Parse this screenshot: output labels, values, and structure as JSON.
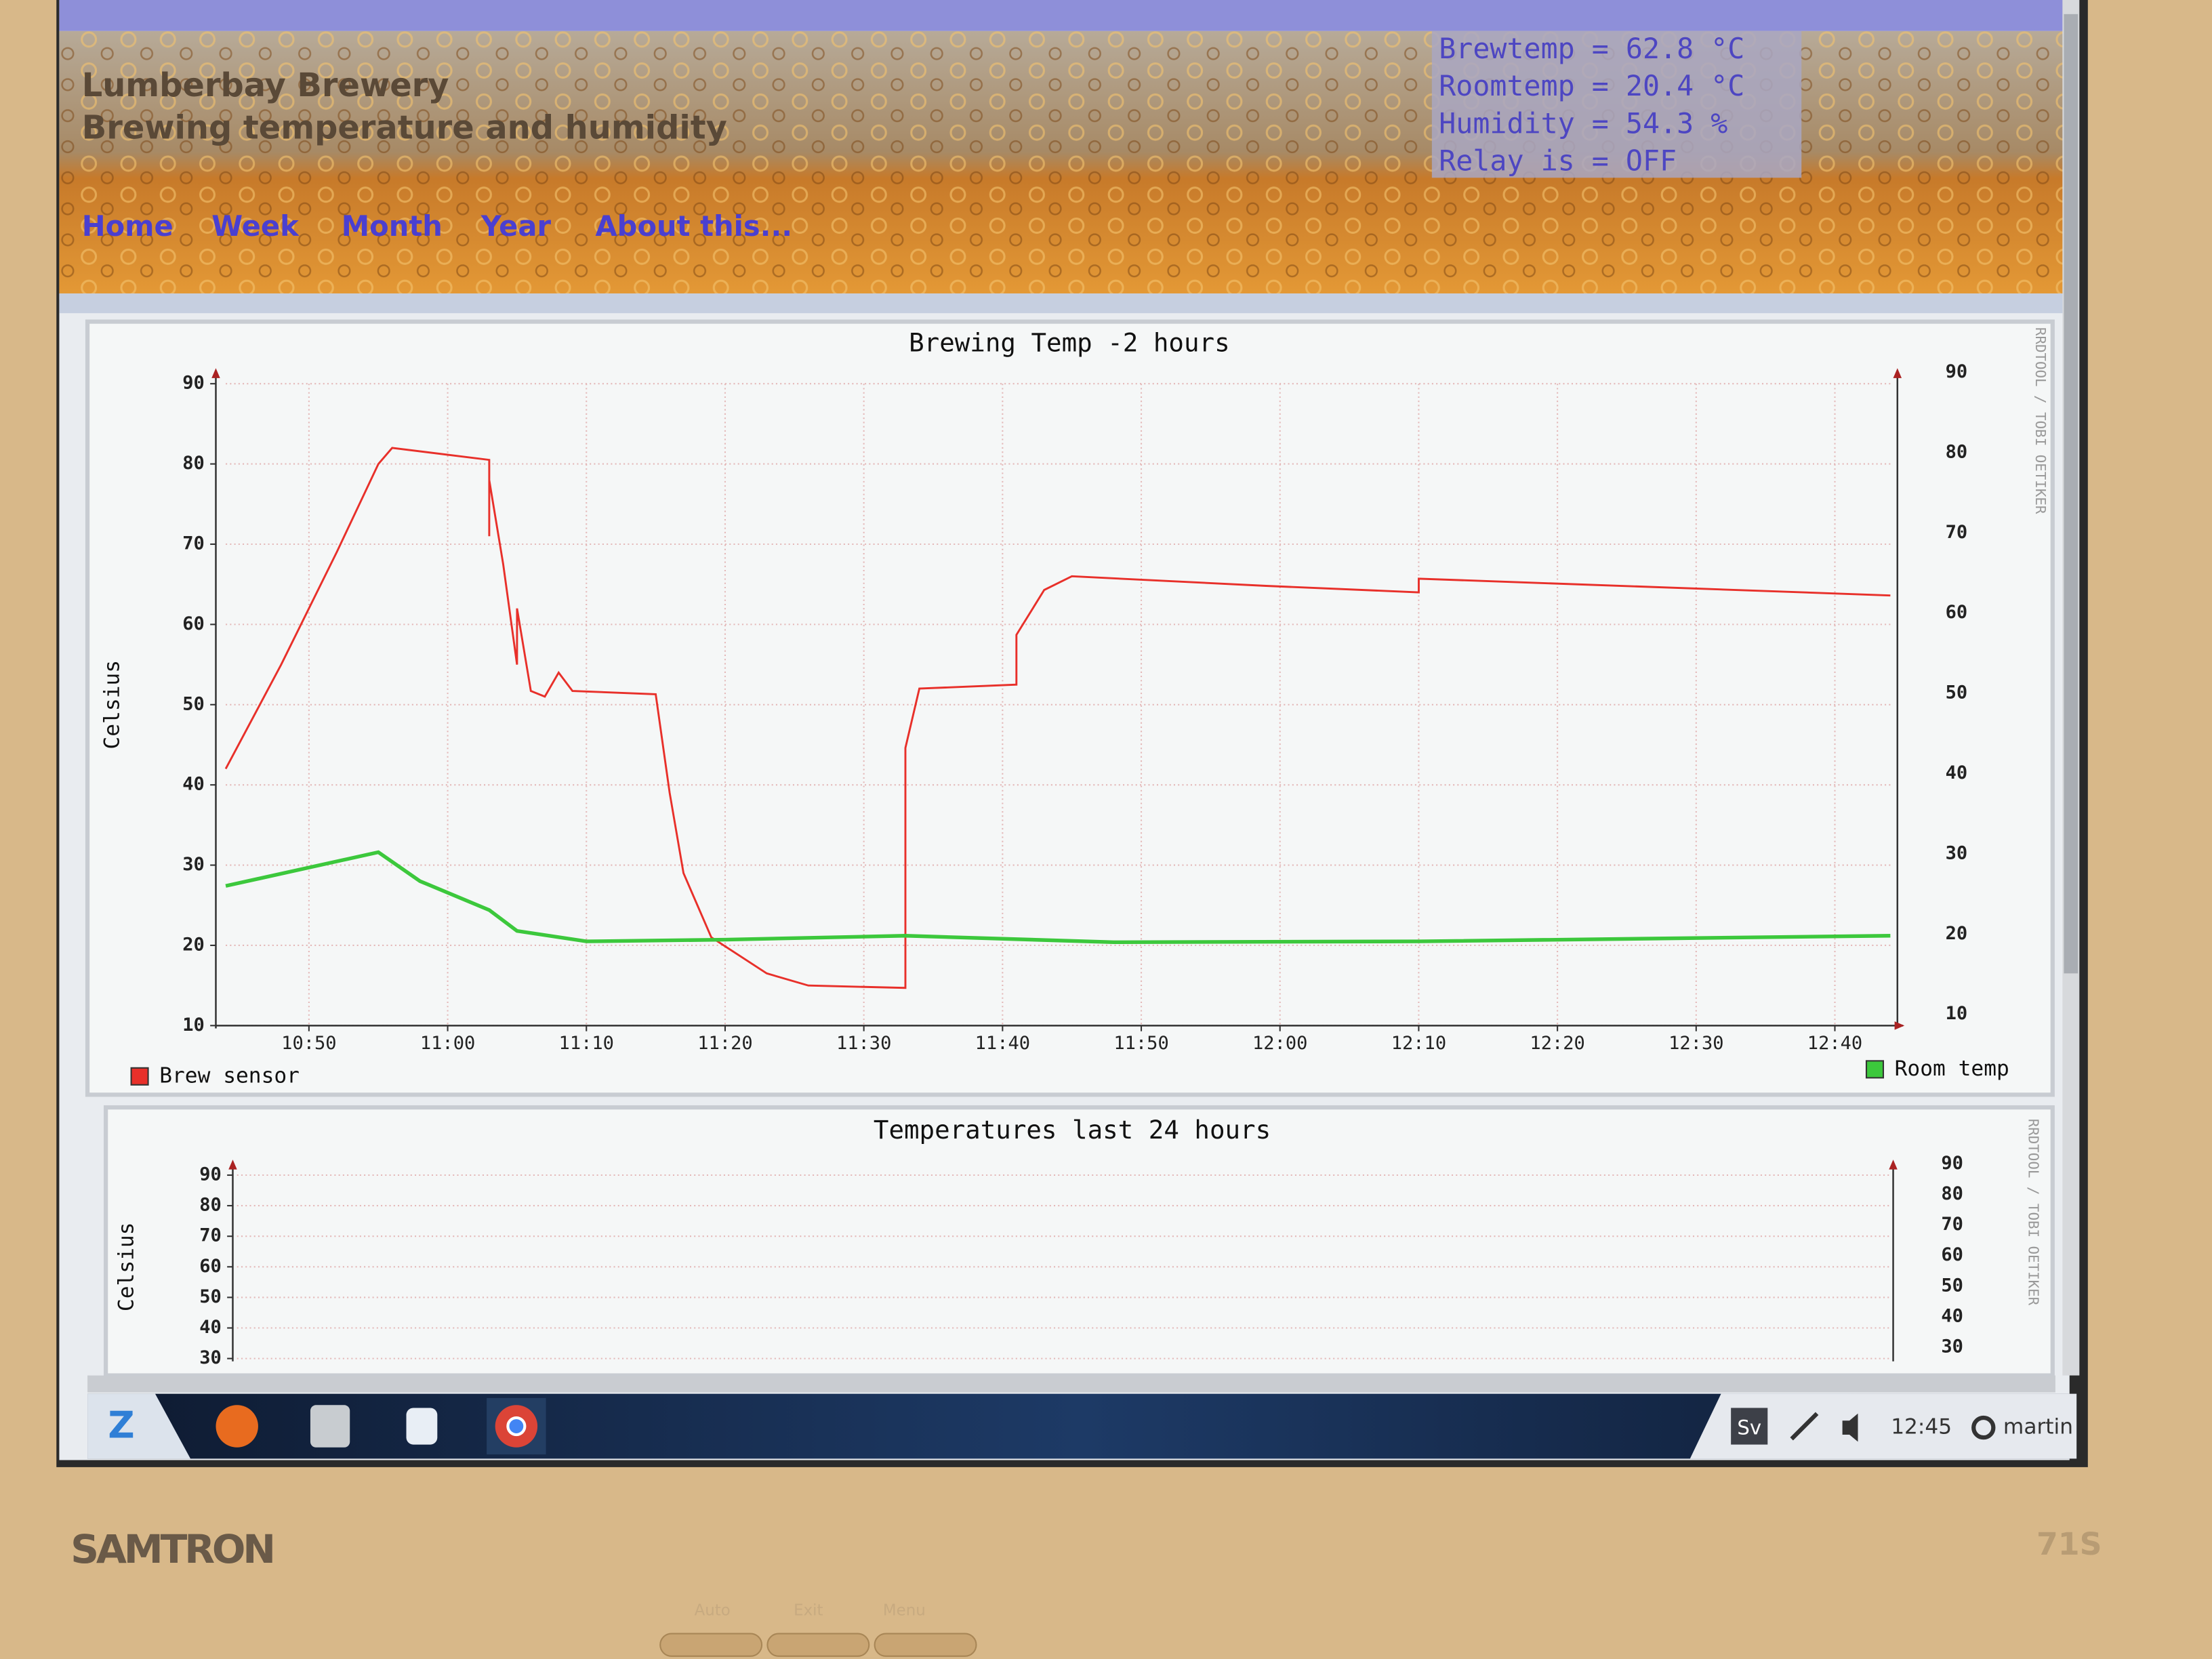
{
  "header": {
    "title": "Lumberbay Brewery",
    "subtitle": "Brewing temperature and humidity",
    "nav": [
      "Home",
      "Week",
      "Month",
      "Year",
      "About this..."
    ],
    "status": [
      "Brewtemp = 62.8 °C",
      "Roomtemp = 20.4 °C",
      "Humidity = 54.3 %",
      "Relay is = OFF"
    ]
  },
  "chart_data": [
    {
      "type": "line",
      "title": "Brewing Temp -2 hours",
      "y_label": "Celsius",
      "watermark": "RRDTOOL / TOBI OETIKER",
      "xlim": [
        "10:44",
        "12:44"
      ],
      "xticks": [
        "10:50",
        "11:00",
        "11:10",
        "11:20",
        "11:30",
        "11:40",
        "11:50",
        "12:00",
        "12:10",
        "12:20",
        "12:30",
        "12:40"
      ],
      "ylim": [
        10,
        90
      ],
      "yticks": [
        10,
        20,
        30,
        40,
        50,
        60,
        70,
        80,
        90
      ],
      "y2lim": [
        10,
        90
      ],
      "y2ticks": [
        10,
        20,
        30,
        40,
        50,
        60,
        70,
        80,
        90
      ],
      "grid": true,
      "series": [
        {
          "name": "Brew sensor",
          "color": "#e8302a",
          "x": [
            "10:44",
            "10:48",
            "10:52",
            "10:55",
            "10:56",
            "11:03",
            "11:03",
            "11:03",
            "11:04",
            "11:05",
            "11:05",
            "11:06",
            "11:07",
            "11:08",
            "11:09",
            "11:15",
            "11:16",
            "11:17",
            "11:19",
            "11:23",
            "11:26",
            "11:33",
            "11:33",
            "11:34",
            "11:41",
            "11:41",
            "11:43",
            "11:45",
            "11:59",
            "12:10",
            "12:10",
            "12:44"
          ],
          "values": [
            42,
            55,
            69,
            80,
            82,
            80.5,
            71,
            78,
            67.5,
            55,
            62,
            51.7,
            51,
            54,
            51.7,
            51.3,
            39,
            29,
            21,
            16.5,
            15,
            14.7,
            44.6,
            52,
            52.5,
            58.7,
            64.3,
            66,
            64.8,
            64,
            65.7,
            63.6
          ]
        },
        {
          "name": "Room temp",
          "color": "#3cc83c",
          "x": [
            "10:44",
            "10:55",
            "10:58",
            "11:03",
            "11:05",
            "11:10",
            "11:20",
            "11:33",
            "11:48",
            "12:10",
            "12:44"
          ],
          "values": [
            27.4,
            31.6,
            28,
            24.4,
            21.8,
            20.5,
            20.7,
            21.2,
            20.4,
            20.5,
            21.2
          ]
        }
      ]
    },
    {
      "type": "line",
      "title": "Temperatures last 24 hours",
      "y_label": "Celsius",
      "watermark": "RRDTOOL / TOBI OETIKER",
      "ylim": [
        30,
        90
      ],
      "yticks": [
        30,
        40,
        50,
        60,
        70,
        80,
        90
      ],
      "y2lim": [
        30,
        90
      ],
      "y2ticks": [
        30,
        40,
        50,
        60,
        70,
        80,
        90
      ],
      "grid": true
    }
  ],
  "taskbar": {
    "language": "Sv",
    "clock": "12:45",
    "user": "martin"
  },
  "monitor": {
    "brand": "SAMTRON",
    "model": "71S",
    "buttons": [
      "Auto",
      "Exit",
      "Menu"
    ]
  }
}
